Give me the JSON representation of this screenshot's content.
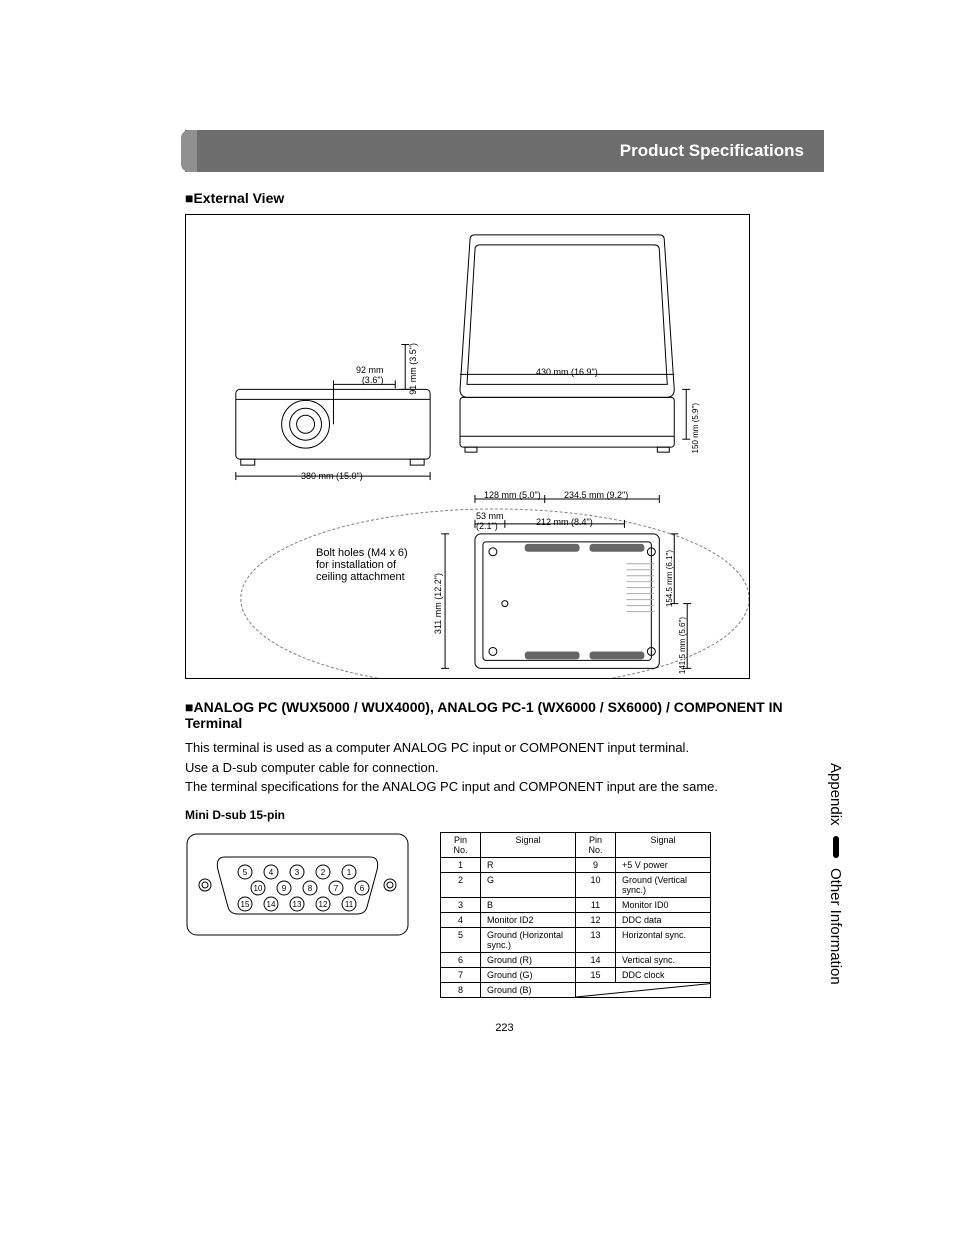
{
  "page": {
    "header_title": "Product Specifications",
    "page_number": "223",
    "side_tab_1": "Appendix",
    "side_tab_2": "Other Information"
  },
  "section_ext_view": {
    "title": "■External View",
    "labels": {
      "w92": "92 mm",
      "w92b": "(3.6\")",
      "h91": "91 mm (3.5\")",
      "w430": "430 mm (16.9\")",
      "w380": "380 mm (15.0\")",
      "h150": "150 mm",
      "h150b": "(5.9\")",
      "w128": "128 mm (5.0\")",
      "w234": "234.5 mm (9.2\")",
      "w53": "53 mm",
      "w53b": "(2.1\")",
      "w212": "212 mm (8.4\")",
      "h311": "311 mm (12.2\")",
      "h154": "154.5 mm",
      "h154b": "(6.1\")",
      "h141": "141.5 mm",
      "h141b": "(5.6\")",
      "bolt1": "Bolt holes (M4 x 6)",
      "bolt2": "for installation of",
      "bolt3": "ceiling attachment"
    }
  },
  "section_analog": {
    "title": "■ANALOG PC (WUX5000 / WUX4000), ANALOG PC-1 (WX6000 / SX6000) / COMPONENT IN Terminal",
    "p1": "This terminal is used as a computer ANALOG PC input or COMPONENT input terminal.",
    "p2": "Use a D-sub computer cable for connection.",
    "p3": "The terminal specifications for the ANALOG PC input and COMPONENT input are the same.",
    "sub": "Mini D-sub 15-pin",
    "table_headers": {
      "pin": "Pin No.",
      "signal": "Signal"
    },
    "pins": [
      {
        "n": "1",
        "s": "R",
        "n2": "9",
        "s2": "+5 V power"
      },
      {
        "n": "2",
        "s": "G",
        "n2": "10",
        "s2": "Ground (Vertical sync.)"
      },
      {
        "n": "3",
        "s": "B",
        "n2": "11",
        "s2": "Monitor ID0"
      },
      {
        "n": "4",
        "s": "Monitor ID2",
        "n2": "12",
        "s2": "DDC data"
      },
      {
        "n": "5",
        "s": "Ground (Horizontal sync.)",
        "n2": "13",
        "s2": "Horizontal sync."
      },
      {
        "n": "6",
        "s": "Ground (R)",
        "n2": "14",
        "s2": "Vertical sync."
      },
      {
        "n": "7",
        "s": "Ground (G)",
        "n2": "15",
        "s2": "DDC clock"
      },
      {
        "n": "8",
        "s": "Ground (B)",
        "n2": "",
        "s2": ""
      }
    ]
  },
  "colors": {
    "header_bg": "#6d6d6d",
    "stroke": "#000000"
  }
}
